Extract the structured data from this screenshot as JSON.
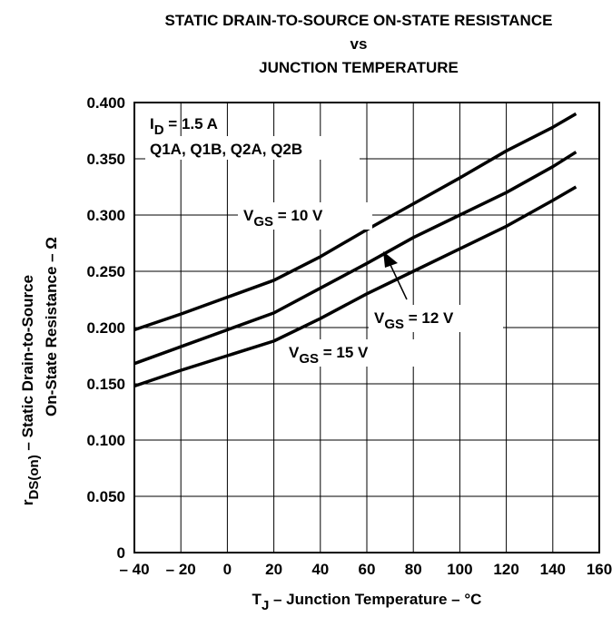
{
  "chart_data": {
    "type": "line",
    "title": [
      "STATIC DRAIN-TO-SOURCE ON-STATE RESISTANCE",
      "vs",
      "JUNCTION TEMPERATURE"
    ],
    "xlabel": [
      "T",
      "J",
      " – Junction Temperature – °C"
    ],
    "ylabel": [
      [
        "r",
        "DS(on)",
        " – Static Drain-to-Source"
      ],
      "On-State Resistance – Ω"
    ],
    "annotations": [
      [
        "I",
        "D",
        " = 1.5 A"
      ],
      "Q1A, Q1B, Q2A, Q2B"
    ],
    "x": [
      -40,
      -20,
      0,
      20,
      40,
      60,
      80,
      100,
      120,
      140,
      150
    ],
    "series": [
      {
        "name": [
          "V",
          "GS",
          " = 10 V"
        ],
        "color": "#000000",
        "values": [
          0.198,
          0.212,
          0.227,
          0.242,
          0.263,
          0.287,
          0.31,
          0.333,
          0.357,
          0.378,
          0.39
        ]
      },
      {
        "name": [
          "V",
          "GS",
          " = 12 V"
        ],
        "color": "#000000",
        "values": [
          0.168,
          0.183,
          0.198,
          0.213,
          0.235,
          0.257,
          0.28,
          0.3,
          0.32,
          0.343,
          0.356
        ]
      },
      {
        "name": [
          "V",
          "GS",
          " = 15 V"
        ],
        "color": "#000000",
        "values": [
          0.148,
          0.162,
          0.175,
          0.188,
          0.208,
          0.23,
          0.25,
          0.27,
          0.29,
          0.313,
          0.325
        ]
      }
    ],
    "xlim": [
      -40,
      160
    ],
    "xticks": [
      {
        "value": -40,
        "label": "– 40"
      },
      {
        "value": -20,
        "label": "– 20"
      },
      0,
      20,
      40,
      60,
      80,
      100,
      120,
      140,
      160
    ],
    "ylim": [
      0,
      0.4
    ],
    "yticks": [
      0,
      {
        "value": 0.05,
        "label": "0.050"
      },
      {
        "value": 0.1,
        "label": "0.100"
      },
      {
        "value": 0.15,
        "label": "0.150"
      },
      {
        "value": 0.2,
        "label": "0.200"
      },
      {
        "value": 0.25,
        "label": "0.250"
      },
      {
        "value": 0.3,
        "label": "0.300"
      },
      {
        "value": 0.35,
        "label": "0.350"
      },
      {
        "value": 0.4,
        "label": "0.400"
      }
    ],
    "grid": true
  }
}
